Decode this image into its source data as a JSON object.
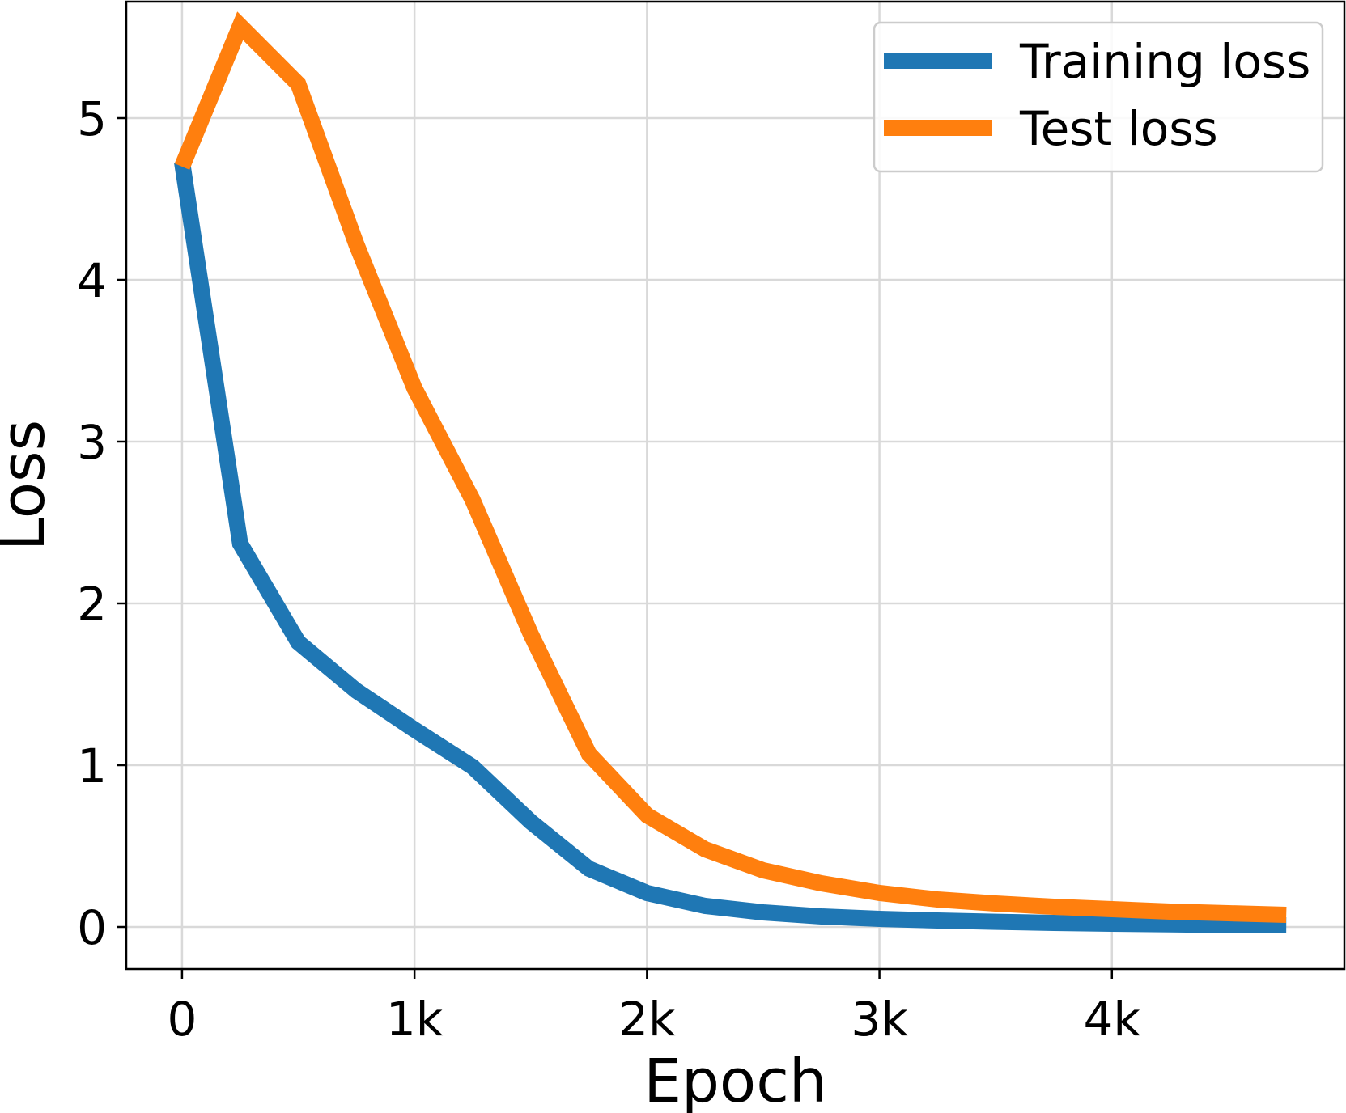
{
  "chart_data": {
    "type": "line",
    "title": "",
    "xlabel": "Epoch",
    "ylabel": "Loss",
    "xlim": [
      -240,
      5000
    ],
    "ylim": [
      -0.26,
      5.72
    ],
    "grid": true,
    "legend_position": "top-right",
    "x_ticks": [
      {
        "value": 0,
        "label": "0"
      },
      {
        "value": 1000,
        "label": "1k"
      },
      {
        "value": 2000,
        "label": "2k"
      },
      {
        "value": 3000,
        "label": "3k"
      },
      {
        "value": 4000,
        "label": "4k"
      }
    ],
    "y_ticks": [
      {
        "value": 0,
        "label": "0"
      },
      {
        "value": 1,
        "label": "1"
      },
      {
        "value": 2,
        "label": "2"
      },
      {
        "value": 3,
        "label": "3"
      },
      {
        "value": 4,
        "label": "4"
      },
      {
        "value": 5,
        "label": "5"
      }
    ],
    "x": [
      0,
      250,
      500,
      750,
      1000,
      1250,
      1500,
      1750,
      2000,
      2250,
      2500,
      2750,
      3000,
      3250,
      3500,
      3750,
      4000,
      4250,
      4500,
      4750
    ],
    "series": [
      {
        "name": "Training loss",
        "color": "#1f77b4",
        "values": [
          4.73,
          2.37,
          1.76,
          1.46,
          1.22,
          0.99,
          0.65,
          0.36,
          0.21,
          0.13,
          0.09,
          0.065,
          0.05,
          0.04,
          0.032,
          0.025,
          0.02,
          0.016,
          0.012,
          0.01
        ]
      },
      {
        "name": "Test loss",
        "color": "#ff7f0e",
        "values": [
          4.7,
          5.57,
          5.21,
          4.22,
          3.33,
          2.64,
          1.81,
          1.07,
          0.69,
          0.48,
          0.35,
          0.27,
          0.21,
          0.17,
          0.145,
          0.125,
          0.11,
          0.095,
          0.085,
          0.075
        ]
      }
    ]
  }
}
